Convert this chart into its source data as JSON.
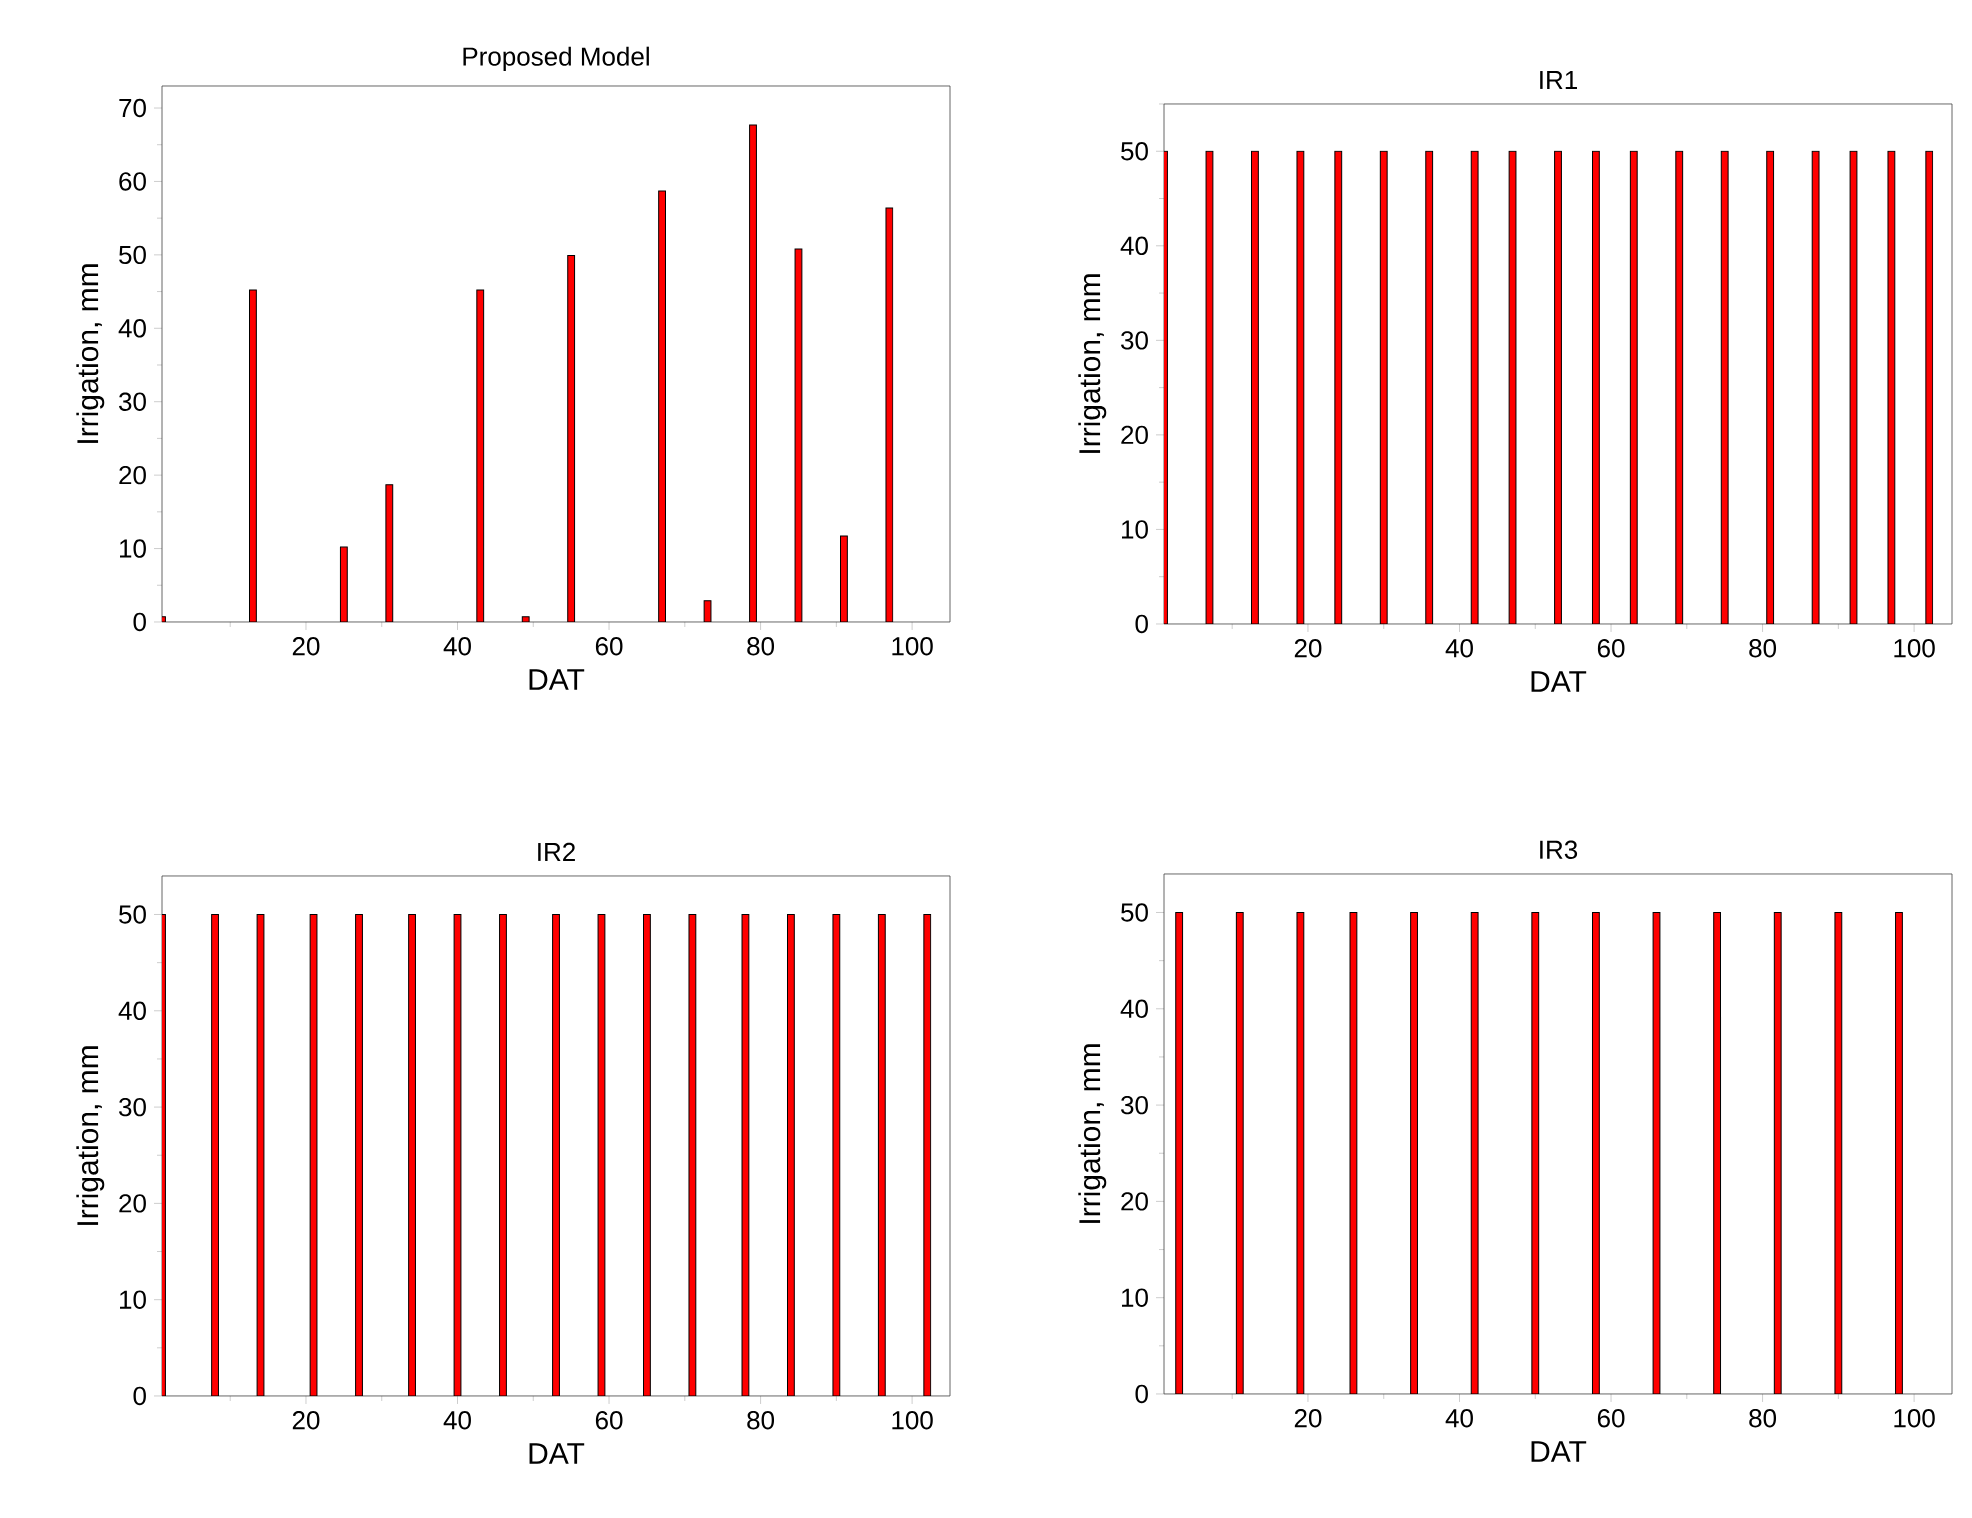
{
  "chart_data": [
    {
      "type": "bar",
      "title": "Proposed Model",
      "xlabel": "DAT",
      "ylabel": "Irrigation, mm",
      "color": "#ff0000",
      "x": [
        1,
        13,
        25,
        31,
        43,
        49,
        55,
        67,
        73,
        79,
        85,
        91,
        97
      ],
      "values": [
        0.7,
        45.2,
        10.2,
        18.7,
        45.2,
        0.7,
        49.9,
        58.7,
        2.9,
        67.7,
        50.8,
        11.7,
        56.4
      ],
      "xlim": [
        1,
        105
      ],
      "ylim": [
        0,
        73
      ],
      "xticks": [
        {
          "value": 10,
          "label": null
        },
        20,
        {
          "value": 30,
          "label": null
        },
        40,
        {
          "value": 50,
          "label": null
        },
        60,
        {
          "value": 70,
          "label": null
        },
        80,
        {
          "value": 90,
          "label": null
        },
        100
      ],
      "yticks": [
        0,
        {
          "value": 5,
          "label": null
        },
        10,
        {
          "value": 15,
          "label": null
        },
        20,
        {
          "value": 25,
          "label": null
        },
        30,
        {
          "value": 35,
          "label": null
        },
        40,
        {
          "value": 45,
          "label": null
        },
        50,
        {
          "value": 55,
          "label": null
        },
        60,
        {
          "value": 65,
          "label": null
        },
        70
      ]
    },
    {
      "type": "bar",
      "title": "IR1",
      "xlabel": "DAT",
      "ylabel": "Irrigation, mm",
      "color": "#ff0000",
      "x": [
        1,
        7,
        13,
        19,
        24,
        30,
        36,
        42,
        47,
        53,
        58,
        63,
        69,
        75,
        81,
        87,
        92,
        97,
        102
      ],
      "values": [
        50,
        50,
        50,
        50,
        50,
        50,
        50,
        50,
        50,
        50,
        50,
        50,
        50,
        50,
        50,
        50,
        50,
        50,
        50
      ],
      "xlim": [
        1,
        105
      ],
      "ylim": [
        0,
        55
      ],
      "xticks": [
        {
          "value": 10,
          "label": null
        },
        20,
        {
          "value": 30,
          "label": null
        },
        40,
        {
          "value": 50,
          "label": null
        },
        60,
        {
          "value": 70,
          "label": null
        },
        80,
        {
          "value": 90,
          "label": null
        },
        100
      ],
      "yticks": [
        0,
        {
          "value": 5,
          "label": null
        },
        10,
        {
          "value": 15,
          "label": null
        },
        20,
        {
          "value": 25,
          "label": null
        },
        30,
        {
          "value": 35,
          "label": null
        },
        40,
        {
          "value": 45,
          "label": null
        },
        50,
        {
          "value": 55,
          "label": null
        }
      ]
    },
    {
      "type": "bar",
      "title": "IR2",
      "xlabel": "DAT",
      "ylabel": "Irrigation, mm",
      "color": "#ff0000",
      "x": [
        1,
        8,
        14,
        21,
        27,
        34,
        40,
        46,
        53,
        59,
        65,
        71,
        78,
        84,
        90,
        96,
        102
      ],
      "values": [
        50,
        50,
        50,
        50,
        50,
        50,
        50,
        50,
        50,
        50,
        50,
        50,
        50,
        50,
        50,
        50,
        50
      ],
      "xlim": [
        1,
        105
      ],
      "ylim": [
        0,
        54
      ],
      "xticks": [
        {
          "value": 10,
          "label": null
        },
        20,
        {
          "value": 30,
          "label": null
        },
        40,
        {
          "value": 50,
          "label": null
        },
        60,
        {
          "value": 70,
          "label": null
        },
        80,
        {
          "value": 90,
          "label": null
        },
        100
      ],
      "yticks": [
        0,
        {
          "value": 5,
          "label": null
        },
        10,
        {
          "value": 15,
          "label": null
        },
        20,
        {
          "value": 25,
          "label": null
        },
        30,
        {
          "value": 35,
          "label": null
        },
        40,
        {
          "value": 45,
          "label": null
        },
        50
      ]
    },
    {
      "type": "bar",
      "title": "IR3",
      "xlabel": "DAT",
      "ylabel": "Irrigation, mm",
      "color": "#ff0000",
      "x": [
        3,
        11,
        19,
        26,
        34,
        42,
        50,
        58,
        66,
        74,
        82,
        90,
        98
      ],
      "values": [
        50,
        50,
        50,
        50,
        50,
        50,
        50,
        50,
        50,
        50,
        50,
        50,
        50
      ],
      "xlim": [
        1,
        105
      ],
      "ylim": [
        0,
        54
      ],
      "xticks": [
        {
          "value": 10,
          "label": null
        },
        20,
        {
          "value": 30,
          "label": null
        },
        40,
        {
          "value": 50,
          "label": null
        },
        60,
        {
          "value": 70,
          "label": null
        },
        80,
        {
          "value": 90,
          "label": null
        },
        100
      ],
      "yticks": [
        0,
        {
          "value": 5,
          "label": null
        },
        10,
        {
          "value": 15,
          "label": null
        },
        20,
        {
          "value": 25,
          "label": null
        },
        30,
        {
          "value": 35,
          "label": null
        },
        40,
        {
          "value": 45,
          "label": null
        },
        50
      ]
    }
  ]
}
